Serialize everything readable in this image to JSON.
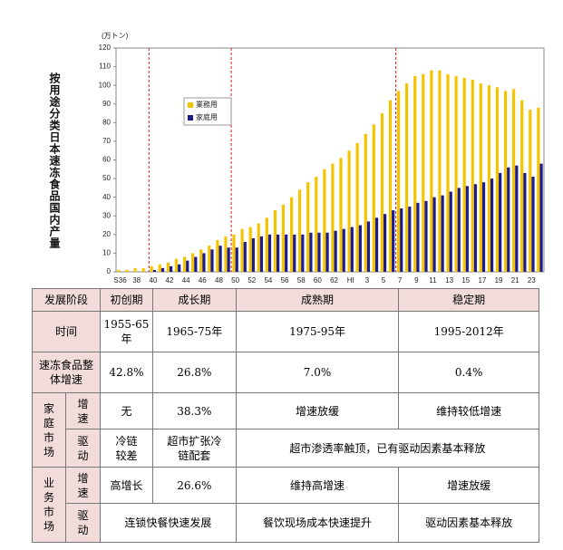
{
  "chart_data": {
    "type": "bar",
    "title": "按用途分类日本速冻食品国内产量",
    "y_unit": "(万トン)",
    "categories": [
      "S36",
      null,
      "38",
      null,
      "40",
      null,
      "42",
      null,
      "44",
      null,
      "46",
      null,
      "48",
      null,
      "50",
      null,
      "52",
      null,
      "54",
      null,
      "56",
      null,
      "58",
      null,
      "60",
      null,
      "62",
      null,
      "HI",
      null,
      "3",
      null,
      "5",
      null,
      "7",
      null,
      "9",
      null,
      "11",
      null,
      "13",
      null,
      "15",
      null,
      "17",
      null,
      "19",
      null,
      "21",
      null,
      "23",
      null
    ],
    "series": [
      {
        "name": "業務用",
        "color": "#f5c400",
        "values": [
          1,
          1,
          2,
          2,
          3,
          4,
          5,
          7,
          8,
          10,
          12,
          14,
          17,
          19,
          20,
          23,
          24,
          26,
          29,
          33,
          36,
          40,
          44,
          48,
          51,
          55,
          58,
          61,
          65,
          69,
          74,
          79,
          85,
          92,
          97,
          101,
          105,
          106,
          108,
          108,
          106,
          105,
          104,
          103,
          101,
          100,
          99,
          97,
          98,
          92,
          87,
          88
        ]
      },
      {
        "name": "家庭用",
        "color": "#1c1c8c",
        "values": [
          0,
          0,
          0,
          0,
          1,
          2,
          3,
          4,
          6,
          8,
          10,
          12,
          14,
          13,
          13,
          16,
          18,
          19,
          20,
          20,
          20,
          20,
          20,
          21,
          21,
          21,
          22,
          23,
          24,
          25,
          27,
          29,
          31,
          33,
          34,
          35,
          37,
          38,
          40,
          41,
          43,
          45,
          46,
          47,
          48,
          50,
          53,
          56,
          57,
          53,
          51,
          58
        ]
      }
    ],
    "ylim": [
      0,
      120
    ],
    "yticks": [
      0,
      10,
      20,
      30,
      40,
      50,
      60,
      70,
      80,
      90,
      100,
      110,
      120
    ],
    "reference_lines": [
      "40",
      "50",
      "7"
    ],
    "reference_color": "#d02020",
    "legend": "upper-left"
  },
  "table": {
    "header": [
      "发展阶段",
      "初创期",
      "成长期",
      "成熟期",
      "稳定期"
    ],
    "rows": [
      [
        "时间",
        "1955-65年",
        "1965-75年",
        "1975-95年",
        "1995-2012年"
      ],
      [
        "速冻食品整体增速",
        "42.8%",
        "26.8%",
        "7.0%",
        "0.4%"
      ],
      [
        "家庭市场",
        "增速",
        "无",
        "38.3%",
        "增速放缓",
        "维持较低增速"
      ],
      [
        "驱动",
        "冷链较差",
        "超市扩张冷链配套",
        "超市渗透率触顶，已有驱动因素基本释放"
      ],
      [
        "业务市场",
        "增速",
        "高增长",
        "26.6%",
        "维持高增速",
        "增速放缓"
      ],
      [
        "驱动",
        "连锁快餐快速发展",
        "餐饮现场成本快速提升",
        "驱动因素基本释放"
      ]
    ]
  }
}
